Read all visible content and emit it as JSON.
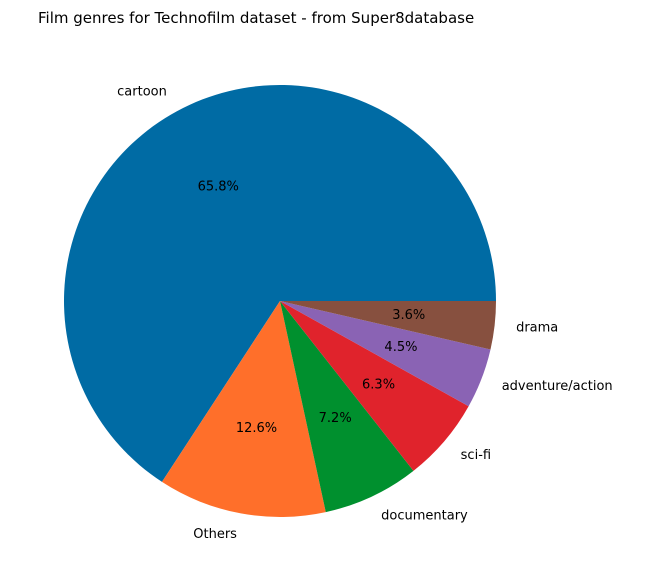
{
  "chart_data": {
    "type": "pie",
    "title": "Film genres for Technofilm dataset - from Super8database",
    "start_angle_deg": 0,
    "direction": "counterclockwise",
    "legend": "none",
    "slices": [
      {
        "label": "cartoon",
        "value": 65.8,
        "pct_label": "65.8%",
        "color": "#006BA4"
      },
      {
        "label": "Others",
        "value": 12.6,
        "pct_label": "12.6%",
        "color": "#FF6F2A"
      },
      {
        "label": "documentary",
        "value": 7.2,
        "pct_label": "7.2%",
        "color": "#00902E"
      },
      {
        "label": "sci-fi",
        "value": 6.3,
        "pct_label": "6.3%",
        "color": "#E0232C"
      },
      {
        "label": "adventure/action",
        "value": 4.5,
        "pct_label": "4.5%",
        "color": "#8A63B4"
      },
      {
        "label": "drama",
        "value": 3.6,
        "pct_label": "3.6%",
        "color": "#87503F"
      }
    ]
  }
}
